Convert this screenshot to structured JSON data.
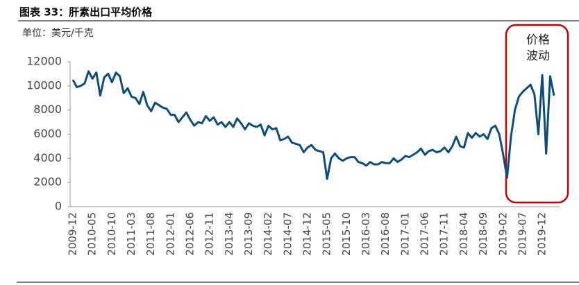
{
  "chart_data": {
    "type": "line",
    "title": "图表 33：肝素出口平均价格",
    "y_unit_label": "单位：美元/千克",
    "annotation_lines": [
      "价格",
      "波动"
    ],
    "ylim": [
      0,
      12000
    ],
    "yticks": [
      0,
      2000,
      4000,
      6000,
      8000,
      10000,
      12000
    ],
    "categories": [
      "2009-12",
      null,
      null,
      null,
      null,
      "2010-05",
      null,
      null,
      null,
      null,
      "2010-10",
      null,
      null,
      null,
      null,
      "2011-03",
      null,
      null,
      null,
      null,
      "2011-08",
      null,
      null,
      null,
      null,
      "2012-01",
      null,
      null,
      null,
      null,
      "2012-06",
      null,
      null,
      null,
      null,
      "2012-11",
      null,
      null,
      null,
      null,
      "2013-04",
      null,
      null,
      null,
      null,
      "2013-09",
      null,
      null,
      null,
      null,
      "2014-02",
      null,
      null,
      null,
      null,
      "2014-07",
      null,
      null,
      null,
      null,
      "2014-12",
      null,
      null,
      null,
      null,
      "2015-05",
      null,
      null,
      null,
      null,
      "2015-10",
      null,
      null,
      null,
      null,
      "2016-03",
      null,
      null,
      null,
      null,
      "2016-08",
      null,
      null,
      null,
      null,
      "2017-01",
      null,
      null,
      null,
      null,
      "2017-06",
      null,
      null,
      null,
      null,
      "2017-11",
      null,
      null,
      null,
      null,
      "2018-04",
      null,
      null,
      null,
      null,
      "2018-09",
      null,
      null,
      null,
      null,
      "2019-02",
      null,
      null,
      null,
      null,
      "2019-07",
      null,
      null,
      null,
      null,
      "2019-12",
      null,
      null,
      null
    ],
    "series": [
      {
        "color": "#0e4d78",
        "values": [
          10500,
          9900,
          10000,
          10200,
          11200,
          10600,
          11100,
          9200,
          10700,
          11000,
          10300,
          11100,
          10800,
          9400,
          9800,
          9100,
          9000,
          8500,
          9500,
          8400,
          7900,
          8600,
          8400,
          8200,
          8100,
          7600,
          7600,
          7000,
          7400,
          7800,
          7200,
          6700,
          7000,
          6900,
          7500,
          7100,
          7400,
          6800,
          7000,
          6600,
          7000,
          6600,
          7300,
          6900,
          6400,
          6900,
          6700,
          6600,
          6800,
          5900,
          6700,
          6400,
          6500,
          5500,
          5600,
          5800,
          5300,
          5200,
          5100,
          4500,
          4900,
          5100,
          4700,
          4600,
          4500,
          2300,
          4000,
          4400,
          4000,
          3800,
          4000,
          4100,
          4100,
          3700,
          3600,
          3400,
          3700,
          3500,
          3500,
          3700,
          3600,
          3600,
          4000,
          3700,
          3900,
          4200,
          4100,
          4300,
          4500,
          4800,
          4300,
          4600,
          4700,
          4500,
          4600,
          4900,
          4500,
          5000,
          5800,
          5000,
          4900,
          6100,
          5700,
          6100,
          5800,
          6000,
          5600,
          6500,
          6700,
          6000,
          4300,
          2400,
          5800,
          8000,
          9100,
          9500,
          9800,
          10100,
          9300,
          6000,
          10900,
          4400,
          10800,
          9200
        ]
      }
    ]
  }
}
